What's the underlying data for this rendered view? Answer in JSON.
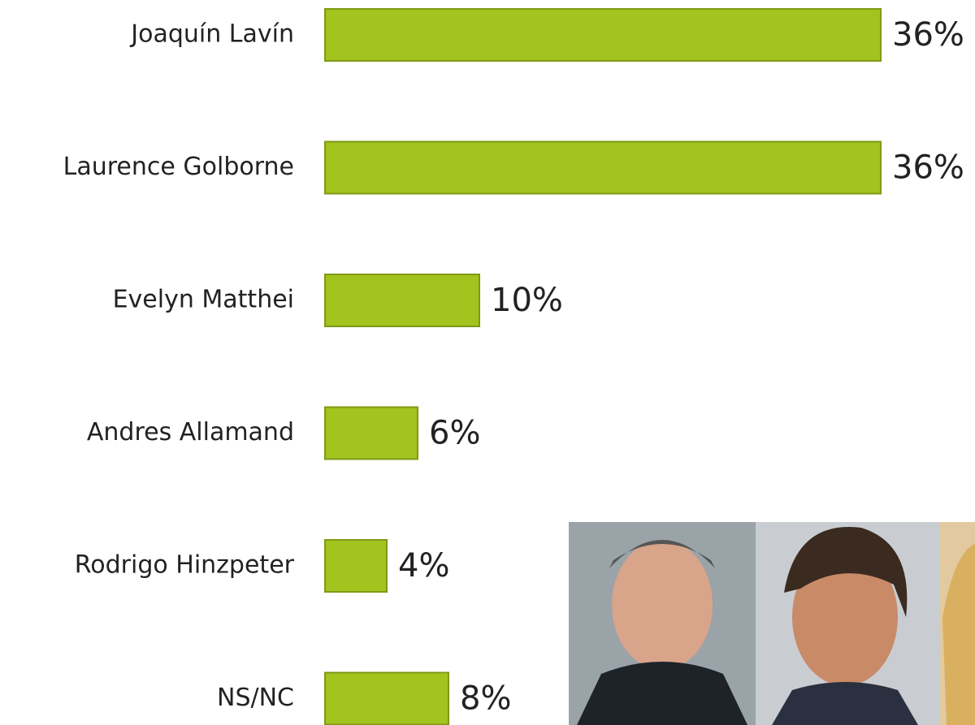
{
  "chart_data": {
    "type": "bar",
    "orientation": "horizontal",
    "categories": [
      "Joaquín Lavín",
      "Laurence Golborne",
      "Evelyn Matthei",
      "Andres Allamand",
      "Rodrigo Hinzpeter",
      "NS/NC"
    ],
    "values": [
      36,
      36,
      10,
      6,
      4,
      8
    ],
    "value_labels": [
      "36%",
      "36%",
      "10%",
      "6%",
      "4%",
      "8%"
    ],
    "color": "#a3c31e"
  }
}
